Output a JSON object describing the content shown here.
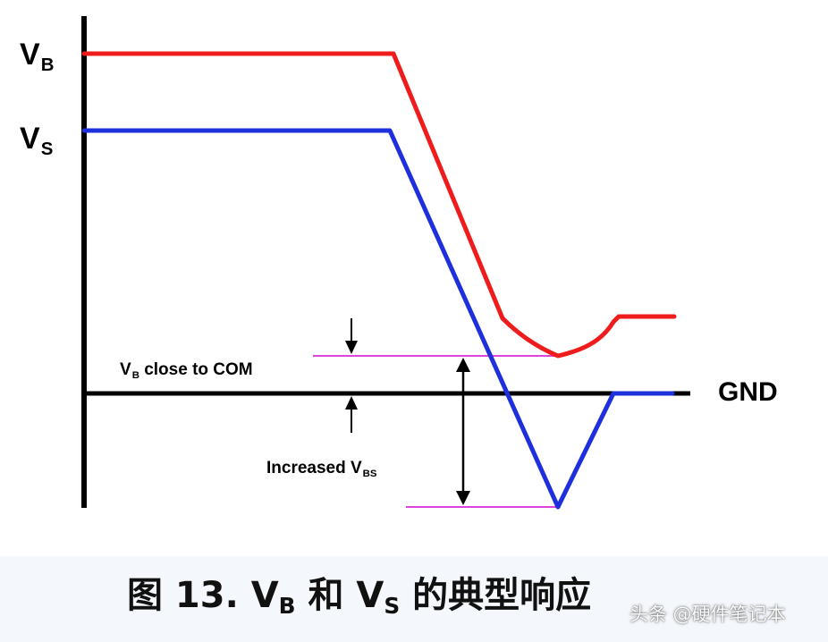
{
  "colors": {
    "vb_trace": "#ee1c1c",
    "vs_trace": "#1e2fdc",
    "marker": "#dd44dd",
    "axis": "#000000"
  },
  "labels": {
    "vb_main": "V",
    "vb_main_sub": "B",
    "vs_main": "V",
    "vs_main_sub": "S",
    "gnd": "GND",
    "vb_close_prefix": "V",
    "vb_close_sub": "B",
    "vb_close_text": " close to COM",
    "increased_text": "Increased V",
    "increased_sub": "BS"
  },
  "caption": {
    "prefix": "图 13. V",
    "sub1": "B",
    "middle": " 和 V",
    "sub2": "S",
    "suffix": " 的典型响应"
  },
  "watermark": {
    "text": "头条 @硬件笔记本"
  }
}
